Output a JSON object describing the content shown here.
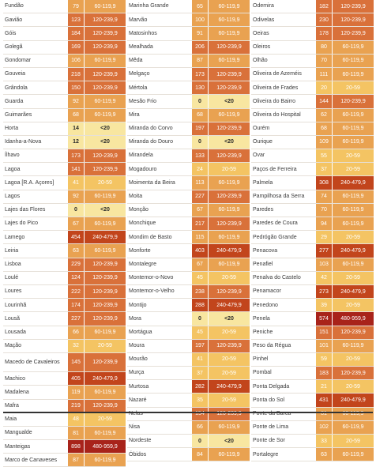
{
  "columns": [
    [
      {
        "name": "Fundão",
        "value": "79",
        "range": "60-119,9",
        "cls": "c3"
      },
      {
        "name": "Gavião",
        "value": "123",
        "range": "120-239,9",
        "cls": "c4"
      },
      {
        "name": "Góis",
        "value": "184",
        "range": "120-239,9",
        "cls": "c4"
      },
      {
        "name": "Golegã",
        "value": "169",
        "range": "120-239,9",
        "cls": "c4"
      },
      {
        "name": "Gondomar",
        "value": "106",
        "range": "60-119,9",
        "cls": "c3"
      },
      {
        "name": "Gouveia",
        "value": "218",
        "range": "120-239,9",
        "cls": "c4"
      },
      {
        "name": "Grândola",
        "value": "150",
        "range": "120-239,9",
        "cls": "c4"
      },
      {
        "name": "Guarda",
        "value": "92",
        "range": "60-119,9",
        "cls": "c3"
      },
      {
        "name": "Guimarães",
        "value": "68",
        "range": "60-119,9",
        "cls": "c3"
      },
      {
        "name": "Horta",
        "value": "14",
        "range": "<20",
        "cls": "c1"
      },
      {
        "name": "Idanha-a-Nova",
        "value": "12",
        "range": "<20",
        "cls": "c1"
      },
      {
        "name": "Ílhavo",
        "value": "173",
        "range": "120-239,9",
        "cls": "c4"
      },
      {
        "name": "Lagoa",
        "value": "141",
        "range": "120-239,9",
        "cls": "c4"
      },
      {
        "name": "Lagoa [R.A. Açores]",
        "value": "41",
        "range": "20-59",
        "cls": "c2"
      },
      {
        "name": "Lagos",
        "value": "92",
        "range": "60-119,9",
        "cls": "c3"
      },
      {
        "name": "Lajes das Flores",
        "value": "0",
        "range": "<20",
        "cls": "c1"
      },
      {
        "name": "Lajes do Pico",
        "value": "67",
        "range": "60-119,9",
        "cls": "c3"
      },
      {
        "name": "Lamego",
        "value": "454",
        "range": "240-479,9",
        "cls": "c5"
      },
      {
        "name": "Leiria",
        "value": "63",
        "range": "60-119,9",
        "cls": "c3"
      },
      {
        "name": "Lisboa",
        "value": "229",
        "range": "120-239,9",
        "cls": "c4"
      },
      {
        "name": "Loulé",
        "value": "124",
        "range": "120-239,9",
        "cls": "c4"
      },
      {
        "name": "Loures",
        "value": "222",
        "range": "120-239,9",
        "cls": "c4"
      },
      {
        "name": "Lourinhã",
        "value": "174",
        "range": "120-239,9",
        "cls": "c4"
      },
      {
        "name": "Lousã",
        "value": "227",
        "range": "120-239,9",
        "cls": "c4"
      },
      {
        "name": "Lousada",
        "value": "66",
        "range": "60-119,9",
        "cls": "c3"
      },
      {
        "name": "Mação",
        "value": "32",
        "range": "20-59",
        "cls": "c2"
      },
      {
        "name": "Macedo de Cavaleiros",
        "value": "145",
        "range": "120-239,9",
        "cls": "c4",
        "tall": true
      },
      {
        "name": "Machico",
        "value": "405",
        "range": "240-479,9",
        "cls": "c5"
      },
      {
        "name": "Madalena",
        "value": "119",
        "range": "60-119,9",
        "cls": "c3"
      },
      {
        "name": "Mafra",
        "value": "219",
        "range": "120-239,9",
        "cls": "c4"
      },
      {
        "name": "Maia",
        "value": "48",
        "range": "20-59",
        "cls": "c2"
      },
      {
        "name": "Mangualde",
        "value": "81",
        "range": "60-119,9",
        "cls": "c3"
      },
      {
        "name": "Manteigas",
        "value": "898",
        "range": "480-959,9",
        "cls": "c6"
      },
      {
        "name": "Marco de Canaveses",
        "value": "87",
        "range": "60-119,9",
        "cls": "c3"
      }
    ],
    [
      {
        "name": "Marinha Grande",
        "value": "65",
        "range": "60-119,9",
        "cls": "c3"
      },
      {
        "name": "Marvão",
        "value": "100",
        "range": "60-119,9",
        "cls": "c3"
      },
      {
        "name": "Matosinhos",
        "value": "91",
        "range": "60-119,9",
        "cls": "c3"
      },
      {
        "name": "Mealhada",
        "value": "206",
        "range": "120-239,9",
        "cls": "c4"
      },
      {
        "name": "Mêda",
        "value": "87",
        "range": "60-119,9",
        "cls": "c3"
      },
      {
        "name": "Melgaço",
        "value": "173",
        "range": "120-239,9",
        "cls": "c4"
      },
      {
        "name": "Mértola",
        "value": "130",
        "range": "120-239,9",
        "cls": "c4"
      },
      {
        "name": "Mesão Frio",
        "value": "0",
        "range": "<20",
        "cls": "c1"
      },
      {
        "name": "Mira",
        "value": "68",
        "range": "60-119,9",
        "cls": "c3"
      },
      {
        "name": "Miranda do Corvo",
        "value": "197",
        "range": "120-239,9",
        "cls": "c4"
      },
      {
        "name": "Miranda do Douro",
        "value": "0",
        "range": "<20",
        "cls": "c1"
      },
      {
        "name": "Mirandela",
        "value": "133",
        "range": "120-239,9",
        "cls": "c4"
      },
      {
        "name": "Mogadouro",
        "value": "24",
        "range": "20-59",
        "cls": "c2"
      },
      {
        "name": "Moimenta da Beira",
        "value": "113",
        "range": "60-119,9",
        "cls": "c3"
      },
      {
        "name": "Moita",
        "value": "227",
        "range": "120-239,9",
        "cls": "c4"
      },
      {
        "name": "Monção",
        "value": "67",
        "range": "60-119,9",
        "cls": "c3"
      },
      {
        "name": "Monchique",
        "value": "217",
        "range": "120-239,9",
        "cls": "c4"
      },
      {
        "name": "Mondim de Basto",
        "value": "115",
        "range": "60-119,9",
        "cls": "c3"
      },
      {
        "name": "Monforte",
        "value": "403",
        "range": "240-479,9",
        "cls": "c5"
      },
      {
        "name": "Montalegre",
        "value": "67",
        "range": "60-119,9",
        "cls": "c3"
      },
      {
        "name": "Montemor-o-Novo",
        "value": "45",
        "range": "20-59",
        "cls": "c2"
      },
      {
        "name": "Montemor-o-Velho",
        "value": "238",
        "range": "120-239,9",
        "cls": "c4"
      },
      {
        "name": "Montijo",
        "value": "288",
        "range": "240-479,9",
        "cls": "c5"
      },
      {
        "name": "Mora",
        "value": "0",
        "range": "<20",
        "cls": "c1"
      },
      {
        "name": "Mortágua",
        "value": "45",
        "range": "20-59",
        "cls": "c2"
      },
      {
        "name": "Moura",
        "value": "197",
        "range": "120-239,9",
        "cls": "c4"
      },
      {
        "name": "Mourão",
        "value": "41",
        "range": "20-59",
        "cls": "c2"
      },
      {
        "name": "Murça",
        "value": "37",
        "range": "20-59",
        "cls": "c2"
      },
      {
        "name": "Murtosa",
        "value": "282",
        "range": "240-479,9",
        "cls": "c5"
      },
      {
        "name": "Nazaré",
        "value": "35",
        "range": "20-59",
        "cls": "c2"
      },
      {
        "name": "Nelas",
        "value": "154",
        "range": "120-239,9",
        "cls": "c4"
      },
      {
        "name": "Nisa",
        "value": "66",
        "range": "60-119,9",
        "cls": "c3"
      },
      {
        "name": "Nordeste",
        "value": "0",
        "range": "<20",
        "cls": "c1"
      },
      {
        "name": "Óbidos",
        "value": "84",
        "range": "60-119,9",
        "cls": "c3"
      }
    ],
    [
      {
        "name": "Odemira",
        "value": "182",
        "range": "120-239,9",
        "cls": "c4"
      },
      {
        "name": "Odivelas",
        "value": "230",
        "range": "120-239,9",
        "cls": "c4"
      },
      {
        "name": "Oeiras",
        "value": "178",
        "range": "120-239,9",
        "cls": "c4"
      },
      {
        "name": "Oleiros",
        "value": "80",
        "range": "60-119,9",
        "cls": "c3"
      },
      {
        "name": "Olhão",
        "value": "70",
        "range": "60-119,9",
        "cls": "c3"
      },
      {
        "name": "Oliveira de Azeméis",
        "value": "111",
        "range": "60-119,9",
        "cls": "c3"
      },
      {
        "name": "Oliveira de Frades",
        "value": "20",
        "range": "20-59",
        "cls": "c2"
      },
      {
        "name": "Oliveira do Bairro",
        "value": "144",
        "range": "120-239,9",
        "cls": "c4"
      },
      {
        "name": "Oliveira do Hospital",
        "value": "62",
        "range": "60-119,9",
        "cls": "c3"
      },
      {
        "name": "Ourém",
        "value": "68",
        "range": "60-119,9",
        "cls": "c3"
      },
      {
        "name": "Ourique",
        "value": "109",
        "range": "60-119,9",
        "cls": "c3"
      },
      {
        "name": "Ovar",
        "value": "55",
        "range": "20-59",
        "cls": "c2"
      },
      {
        "name": "Paços de Ferreira",
        "value": "37",
        "range": "20-59",
        "cls": "c2"
      },
      {
        "name": "Palmela",
        "value": "308",
        "range": "240-479,9",
        "cls": "c5"
      },
      {
        "name": "Pampilhosa da Serra",
        "value": "74",
        "range": "60-119,9",
        "cls": "c3"
      },
      {
        "name": "Paredes",
        "value": "70",
        "range": "60-119,9",
        "cls": "c3"
      },
      {
        "name": "Paredes de Coura",
        "value": "94",
        "range": "60-119,9",
        "cls": "c3"
      },
      {
        "name": "Pedrógão Grande",
        "value": "29",
        "range": "20-59",
        "cls": "c2"
      },
      {
        "name": "Penacova",
        "value": "277",
        "range": "240-479,9",
        "cls": "c5"
      },
      {
        "name": "Penafiel",
        "value": "103",
        "range": "60-119,9",
        "cls": "c3"
      },
      {
        "name": "Penalva do Castelo",
        "value": "42",
        "range": "20-59",
        "cls": "c2"
      },
      {
        "name": "Penamacor",
        "value": "273",
        "range": "240-479,9",
        "cls": "c5"
      },
      {
        "name": "Penedono",
        "value": "39",
        "range": "20-59",
        "cls": "c2"
      },
      {
        "name": "Penela",
        "value": "574",
        "range": "480-959,9",
        "cls": "c6"
      },
      {
        "name": "Peniche",
        "value": "151",
        "range": "120-239,9",
        "cls": "c4"
      },
      {
        "name": "Peso da Régua",
        "value": "101",
        "range": "60-119,9",
        "cls": "c3"
      },
      {
        "name": "Pinhel",
        "value": "59",
        "range": "20-59",
        "cls": "c2"
      },
      {
        "name": "Pombal",
        "value": "183",
        "range": "120-239,9",
        "cls": "c4"
      },
      {
        "name": "Ponta Delgada",
        "value": "21",
        "range": "20-59",
        "cls": "c2"
      },
      {
        "name": "Ponta do Sol",
        "value": "431",
        "range": "240-479,9",
        "cls": "c5"
      },
      {
        "name": "Ponte da Barca",
        "value": "81",
        "range": "60-119,9",
        "cls": "c3"
      },
      {
        "name": "Ponte de Lima",
        "value": "102",
        "range": "60-119,9",
        "cls": "c3"
      },
      {
        "name": "Ponte de Sor",
        "value": "33",
        "range": "20-59",
        "cls": "c2"
      },
      {
        "name": "Portalegre",
        "value": "63",
        "range": "60-119,9",
        "cls": "c3"
      }
    ]
  ]
}
